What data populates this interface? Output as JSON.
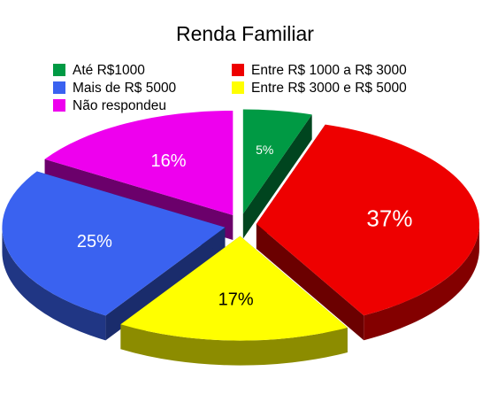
{
  "chart_data": {
    "type": "pie",
    "title": "Renda Familiar",
    "legend_position": "top",
    "slices": [
      {
        "label": "Até R$1000",
        "value": 5,
        "value_label": "5%",
        "color": "#009a44"
      },
      {
        "label": "Entre R$ 1000 a R$ 3000",
        "value": 37,
        "value_label": "37%",
        "color": "#ee0000"
      },
      {
        "label": "Entre R$ 3000 e R$ 5000",
        "value": 17,
        "value_label": "17%",
        "color": "#ffff00"
      },
      {
        "label": "Mais de R$ 5000",
        "value": 25,
        "value_label": "25%",
        "color": "#3a62f0"
      },
      {
        "label": "Não respondeu",
        "value": 16,
        "value_label": "16%",
        "color": "#ee00ee"
      }
    ]
  }
}
